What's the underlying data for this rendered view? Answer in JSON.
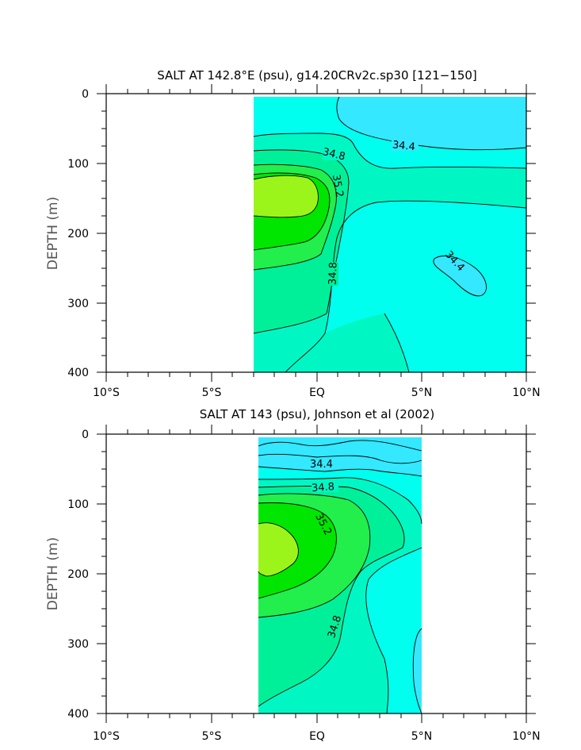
{
  "chart_data": [
    {
      "type": "heatmap",
      "title": "SALT AT 142.8°E (psu), g14.20CRv2c.sp30 [121−150]",
      "xlabel": "",
      "ylabel": "DEPTH (m)",
      "xlim": [
        -10,
        10
      ],
      "ylim": [
        400,
        0
      ],
      "x_tick_labels": [
        "10°S",
        "5°S",
        "EQ",
        "5°N",
        "10°N"
      ],
      "y_tick_labels": [
        "0",
        "100",
        "200",
        "300",
        "400"
      ],
      "data_extent_lat": [
        -3.1,
        10
      ],
      "contour_interval": 0.2,
      "contour_labels": [
        "34.4",
        "34.8",
        "35.2",
        "34.8",
        "34.4"
      ],
      "colors": {
        "lt_34.4": "#33e8ff",
        "34.4_34.6": "#00ffee",
        "34.6_34.8": "#00f7c3",
        "34.8_35.0": "#00f09a",
        "35.0_35.2": "#22ee4c",
        "35.2_35.4": "#00e600",
        "gt_35.4": "#9cf51a"
      }
    },
    {
      "type": "heatmap",
      "title": "SALT AT 143 (psu), Johnson et al (2002)",
      "xlabel": "",
      "ylabel": "DEPTH (m)",
      "xlim": [
        -10,
        10
      ],
      "ylim": [
        400,
        0
      ],
      "x_tick_labels": [
        "10°S",
        "5°S",
        "EQ",
        "5°N",
        "10°N"
      ],
      "y_tick_labels": [
        "0",
        "100",
        "200",
        "300",
        "400"
      ],
      "data_extent_lat": [
        -2.8,
        5
      ],
      "contour_interval": 0.2,
      "contour_labels": [
        "34.4",
        "34.8",
        "35.2",
        "34.8"
      ],
      "colors": {
        "lt_34.4": "#33e8ff",
        "34.4_34.6": "#00ffee",
        "34.6_34.8": "#00f7c3",
        "34.8_35.0": "#00f09a",
        "35.0_35.2": "#22ee4c",
        "35.2_35.4": "#00e600",
        "gt_35.4": "#9cf51a"
      }
    }
  ]
}
